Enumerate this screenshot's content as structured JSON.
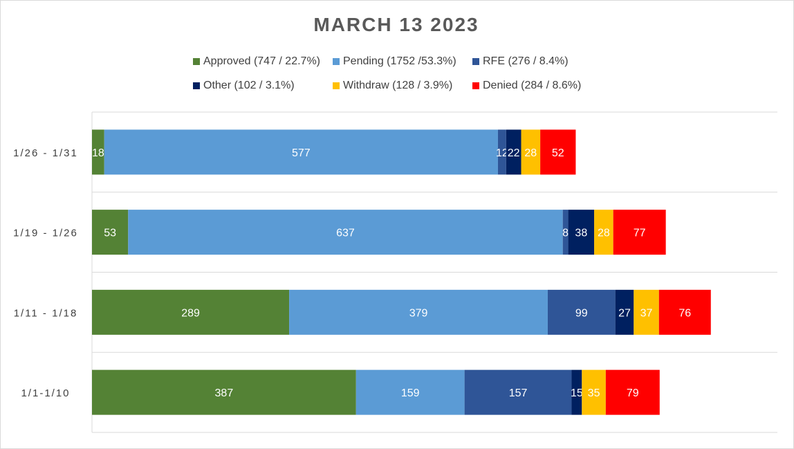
{
  "chart_data": {
    "type": "bar",
    "orientation": "horizontal",
    "stacked": true,
    "title": "MARCH 13 2023",
    "legend_position": "top",
    "grid": "horizontal lines between categories",
    "categories": [
      "1/26 - 1/31",
      "1/19 - 1/26",
      "1/11 - 1/18",
      "1/1-1/10"
    ],
    "series": [
      {
        "name": "Approved (747 / 22.7%)",
        "color": "#548235",
        "values": [
          18,
          53,
          289,
          387
        ]
      },
      {
        "name": "Pending (1752 /53.3%)",
        "color": "#5b9bd5",
        "values": [
          577,
          637,
          379,
          159
        ]
      },
      {
        "name": "RFE (276 / 8.4%)",
        "color": "#2f5597",
        "values": [
          12,
          8,
          99,
          157
        ]
      },
      {
        "name": "Other (102 / 3.1%)",
        "color": "#002060",
        "values": [
          22,
          38,
          27,
          15
        ]
      },
      {
        "name": "Withdraw (128 / 3.9%)",
        "color": "#ffc000",
        "values": [
          28,
          28,
          37,
          35
        ]
      },
      {
        "name": "Denied (284 / 8.6%)",
        "color": "#ff0000",
        "values": [
          52,
          77,
          76,
          79
        ]
      }
    ],
    "xlim": [
      0,
      1000
    ]
  }
}
